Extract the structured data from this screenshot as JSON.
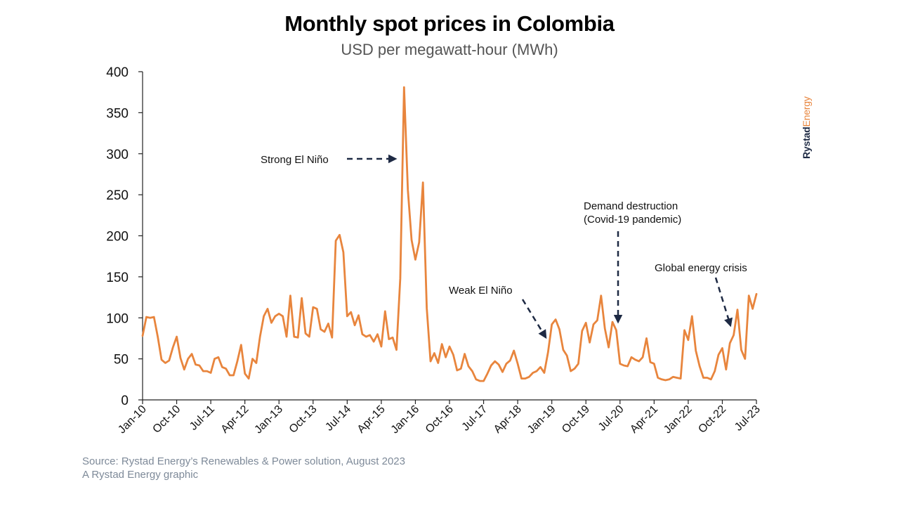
{
  "chart_data": {
    "type": "line",
    "title": "Monthly spot prices in Colombia",
    "subtitle": "USD per megawatt-hour (MWh)",
    "ylim": [
      0,
      400
    ],
    "yticks": [
      0,
      50,
      100,
      150,
      200,
      250,
      300,
      350,
      400
    ],
    "xtick_labels": [
      "Jan-10",
      "Oct-10",
      "Jul-11",
      "Apr-12",
      "Jan-13",
      "Oct-13",
      "Jul-14",
      "Apr-15",
      "Jan-16",
      "Oct-16",
      "Jul-17",
      "Apr-18",
      "Jan-19",
      "Oct-19",
      "Jul-20",
      "Apr-21",
      "Jan-22",
      "Oct-22",
      "Jul-23"
    ],
    "grid": false,
    "color": "#e8853d",
    "series": [
      {
        "start": "Jan-10",
        "frequency": "monthly",
        "values": [
          78,
          101,
          100,
          101,
          77,
          49,
          45,
          48,
          64,
          77,
          51,
          37,
          50,
          56,
          43,
          42,
          35,
          35,
          33,
          50,
          52,
          40,
          38,
          30,
          30,
          47,
          67,
          32,
          26,
          50,
          45,
          77,
          102,
          111,
          94,
          102,
          105,
          102,
          77,
          127,
          77,
          76,
          124,
          81,
          77,
          113,
          111,
          86,
          83,
          93,
          76,
          194,
          201,
          180,
          102,
          107,
          91,
          103,
          80,
          77,
          79,
          71,
          80,
          65,
          108,
          74,
          76,
          61,
          148,
          381,
          256,
          195,
          171,
          192,
          265,
          112,
          47,
          57,
          45,
          68,
          52,
          65,
          55,
          36,
          38,
          56,
          41,
          35,
          25,
          23,
          23,
          32,
          42,
          47,
          43,
          34,
          44,
          48,
          60,
          44,
          26,
          26,
          28,
          33,
          35,
          40,
          33,
          58,
          92,
          98,
          86,
          61,
          54,
          35,
          38,
          44,
          84,
          94,
          70,
          92,
          97,
          127,
          87,
          64,
          95,
          85,
          44,
          42,
          41,
          52,
          49,
          47,
          52,
          75,
          46,
          44,
          27,
          25,
          24,
          25,
          28,
          27,
          26,
          85,
          73,
          102,
          60,
          41,
          27,
          27,
          25,
          35,
          55,
          63,
          37,
          69,
          79,
          110,
          61,
          50,
          127,
          111,
          129
        ]
      }
    ],
    "annotations": [
      {
        "text": "Strong El Niño"
      },
      {
        "text": "Weak El Niño"
      },
      {
        "lines": [
          "Demand destruction",
          "(Covid-19 pandemic)"
        ]
      },
      {
        "text": "Global energy crisis"
      }
    ]
  },
  "source_lines": [
    "Source: Rystad Energy’s Renewables & Power solution, August 2023",
    "A Rystad Energy graphic"
  ],
  "brand": {
    "part1": "Rystad",
    "part2": "Energy"
  },
  "colors": {
    "line": "#e8853d",
    "arrow": "#1e2a44",
    "source": "#7e8a99"
  }
}
